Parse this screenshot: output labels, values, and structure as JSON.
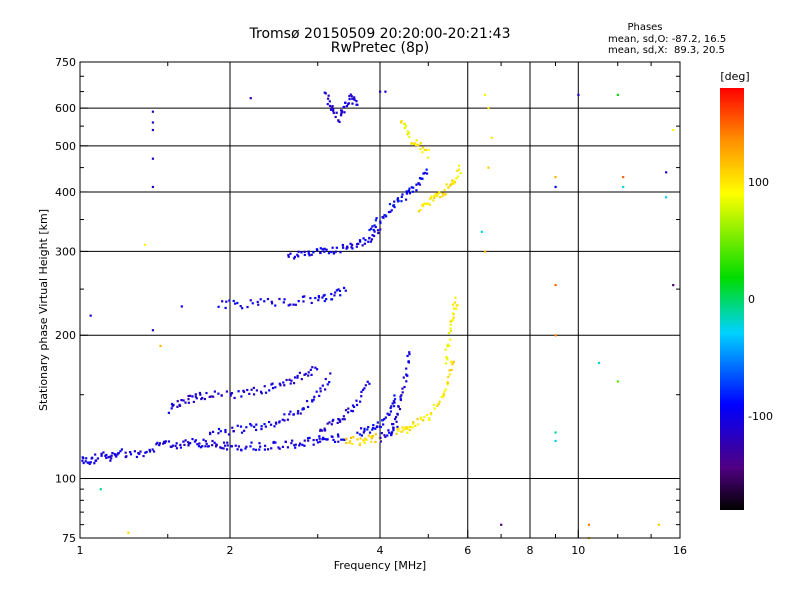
{
  "chart_data": {
    "type": "scatter",
    "title": "Tromsø 20150509 20:20:00-20:21:43",
    "subtitle": "RwPretec (8p)",
    "xlabel": "Frequency [MHz]",
    "ylabel": "Stationary phase Virtual Height [km]",
    "x_scale": "log",
    "y_scale": "log",
    "xlim": [
      1,
      16
    ],
    "ylim": [
      75,
      750
    ],
    "x_ticks": [
      1,
      2,
      4,
      6,
      8,
      10,
      16
    ],
    "x_tick_labels": [
      "1",
      "2",
      "4",
      "6",
      "8",
      "10",
      "16"
    ],
    "x_grid": [
      2,
      4,
      6,
      8,
      10
    ],
    "y_ticks": [
      75,
      100,
      200,
      300,
      400,
      500,
      600,
      750
    ],
    "y_tick_labels": [
      "75",
      "100",
      "200",
      "300",
      "400",
      "500",
      "600",
      "750"
    ],
    "y_grid": [
      100,
      200,
      300,
      400,
      500,
      600
    ],
    "grid": true,
    "phase_box": {
      "title": "Phases",
      "line1": "mean, sd,O: -87.2, 16.5",
      "line2": "mean, sd,X:  89.3, 20.5"
    },
    "colorbar": {
      "label": "[deg]",
      "range": [
        -180,
        180
      ],
      "ticks": [
        100,
        0,
        -100
      ],
      "tick_labels": [
        "100",
        "0",
        "-100"
      ]
    },
    "traces": [
      {
        "freq": [
          1.0,
          1.05,
          1.1,
          1.15,
          1.2,
          1.3,
          1.4,
          1.5,
          1.6,
          1.7,
          1.8,
          1.9,
          2.0,
          2.2,
          2.4,
          2.6,
          2.8,
          3.0,
          3.2,
          3.4
        ],
        "height": [
          110,
          108,
          112,
          110,
          114,
          112,
          116,
          118,
          118,
          119,
          118,
          118,
          117,
          117,
          117.5,
          118,
          119,
          120,
          121,
          122
        ],
        "phase": -105
      },
      {
        "freq": [
          1.5,
          1.6,
          1.7,
          1.8,
          2.0,
          2.2,
          2.4,
          2.6,
          2.8,
          3.0
        ],
        "height": [
          140,
          145,
          148,
          150,
          150,
          152,
          155,
          160,
          165,
          170
        ],
        "phase": -110
      },
      {
        "freq": [
          1.8,
          2.0,
          2.2,
          2.4,
          2.6,
          2.8,
          3.0,
          3.2
        ],
        "height": [
          125,
          126,
          128,
          130,
          135,
          140,
          150,
          165
        ],
        "phase": -100
      },
      {
        "freq": [
          3.0,
          3.2,
          3.4,
          3.6,
          3.8
        ],
        "height": [
          125,
          130,
          135,
          145,
          160
        ],
        "phase": -108
      },
      {
        "freq": [
          3.6,
          3.8,
          4.0,
          4.2,
          4.3
        ],
        "height": [
          125,
          127,
          130,
          138,
          150
        ],
        "phase": -95
      },
      {
        "freq": [
          3.4,
          3.6,
          3.8,
          4.0
        ],
        "height": [
          120,
          120,
          121,
          122
        ],
        "phase": 105
      },
      {
        "freq": [
          4.0,
          4.2,
          4.3,
          4.4,
          4.5,
          4.6
        ],
        "height": [
          122,
          125,
          130,
          145,
          165,
          185
        ],
        "phase": -105
      },
      {
        "freq": [
          4.3,
          4.5,
          4.7,
          5.0,
          5.3,
          5.5,
          5.6
        ],
        "height": [
          125,
          127,
          130,
          135,
          145,
          160,
          180
        ],
        "phase": 100
      },
      {
        "freq": [
          5.4,
          5.5,
          5.6,
          5.7
        ],
        "height": [
          170,
          200,
          220,
          240
        ],
        "phase": 95
      },
      {
        "freq": [
          1.9,
          2.1,
          2.4,
          2.7,
          3.0,
          3.2,
          3.4
        ],
        "height": [
          232,
          232,
          235,
          236,
          238,
          242,
          250
        ],
        "phase": -100
      },
      {
        "freq": [
          2.6,
          2.8,
          3.0,
          3.2,
          3.4,
          3.6,
          3.8,
          4.0
        ],
        "height": [
          290,
          295,
          300,
          302,
          305,
          310,
          318,
          330
        ],
        "phase": -105
      },
      {
        "freq": [
          3.8,
          4.0,
          4.2,
          4.4,
          4.6,
          4.8,
          5.0
        ],
        "height": [
          330,
          350,
          370,
          385,
          400,
          420,
          450
        ],
        "phase": -95
      },
      {
        "freq": [
          4.8,
          5.0,
          5.2,
          5.4,
          5.6,
          5.8
        ],
        "height": [
          370,
          380,
          390,
          400,
          420,
          450
        ],
        "phase": 100
      },
      {
        "freq": [
          4.4,
          4.6,
          4.8,
          5.0
        ],
        "height": [
          560,
          520,
          500,
          480
        ],
        "phase": 95
      },
      {
        "freq": [
          3.1,
          3.2,
          3.3,
          3.4,
          3.5,
          3.6
        ],
        "height": [
          640,
          600,
          570,
          600,
          630,
          610
        ],
        "phase": -108
      }
    ],
    "scatter_points": [
      {
        "freq": 1.4,
        "height": 590,
        "phase": -115
      },
      {
        "freq": 1.4,
        "height": 560,
        "phase": -115
      },
      {
        "freq": 1.4,
        "height": 540,
        "phase": -115
      },
      {
        "freq": 1.4,
        "height": 470,
        "phase": -115
      },
      {
        "freq": 1.4,
        "height": 410,
        "phase": -115
      },
      {
        "freq": 2.2,
        "height": 630,
        "phase": -120
      },
      {
        "freq": 4.0,
        "height": 650,
        "phase": -110
      },
      {
        "freq": 4.1,
        "height": 650,
        "phase": -110
      },
      {
        "freq": 6.5,
        "height": 640,
        "phase": 95
      },
      {
        "freq": 6.6,
        "height": 600,
        "phase": 100
      },
      {
        "freq": 6.7,
        "height": 520,
        "phase": 100
      },
      {
        "freq": 6.6,
        "height": 450,
        "phase": 110
      },
      {
        "freq": 6.4,
        "height": 330,
        "phase": -20
      },
      {
        "freq": 6.5,
        "height": 300,
        "phase": 120
      },
      {
        "freq": 7.0,
        "height": 80,
        "phase": -150
      },
      {
        "freq": 9.0,
        "height": 430,
        "phase": 120
      },
      {
        "freq": 9.0,
        "height": 410,
        "phase": -90
      },
      {
        "freq": 9.0,
        "height": 255,
        "phase": 150
      },
      {
        "freq": 9.0,
        "height": 200,
        "phase": 140
      },
      {
        "freq": 9.0,
        "height": 125,
        "phase": -10
      },
      {
        "freq": 9.0,
        "height": 120,
        "phase": -30
      },
      {
        "freq": 10.0,
        "height": 640,
        "phase": -110
      },
      {
        "freq": 10.5,
        "height": 80,
        "phase": 140
      },
      {
        "freq": 10.5,
        "height": 75,
        "phase": 110
      },
      {
        "freq": 11.0,
        "height": 175,
        "phase": -20
      },
      {
        "freq": 12.0,
        "height": 640,
        "phase": 20
      },
      {
        "freq": 12.3,
        "height": 430,
        "phase": 150
      },
      {
        "freq": 12.3,
        "height": 410,
        "phase": -20
      },
      {
        "freq": 12.0,
        "height": 160,
        "phase": 40
      },
      {
        "freq": 15.0,
        "height": 440,
        "phase": -110
      },
      {
        "freq": 15.0,
        "height": 390,
        "phase": -30
      },
      {
        "freq": 15.5,
        "height": 255,
        "phase": -150
      },
      {
        "freq": 15.5,
        "height": 540,
        "phase": 95
      },
      {
        "freq": 14.5,
        "height": 80,
        "phase": 110
      },
      {
        "freq": 1.05,
        "height": 220,
        "phase": -105
      },
      {
        "freq": 1.1,
        "height": 95,
        "phase": -10
      },
      {
        "freq": 1.35,
        "height": 310,
        "phase": 95
      },
      {
        "freq": 1.4,
        "height": 205,
        "phase": -110
      },
      {
        "freq": 1.45,
        "height": 190,
        "phase": 120
      },
      {
        "freq": 1.25,
        "height": 77,
        "phase": 105
      },
      {
        "freq": 1.6,
        "height": 230,
        "phase": -100
      }
    ]
  }
}
